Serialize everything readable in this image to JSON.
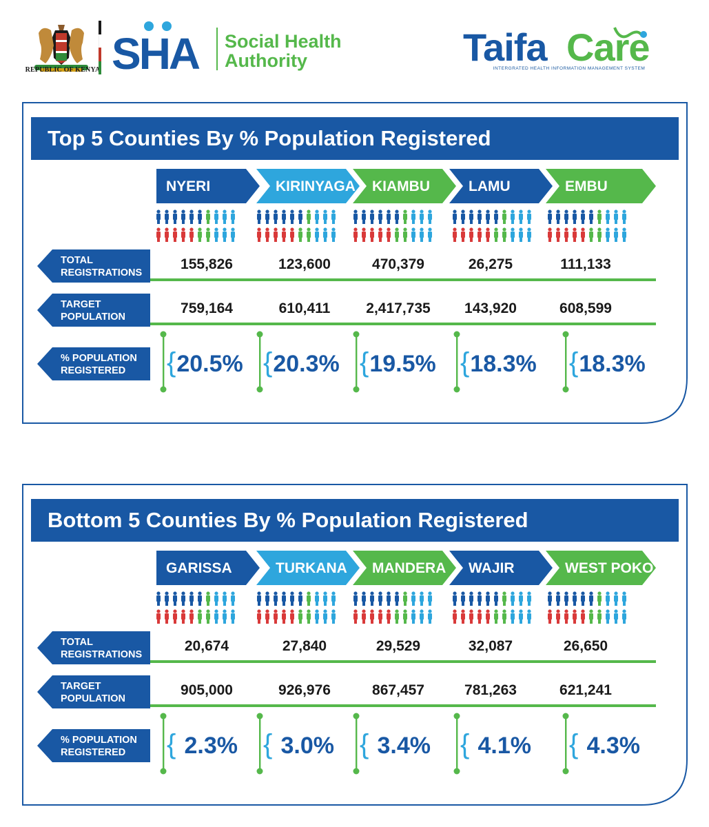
{
  "header": {
    "kenya_caption": "REPUBLIC OF KENYA",
    "sha_line1": "Social Health",
    "sha_line2": "Authority",
    "taifacare_subtitle": "INTERGRATED HEALTH INFORMATION MANAGEMENT SYSTEM",
    "brand_colors": {
      "blue": "#1958a4",
      "green": "#55b84b",
      "light_blue": "#2ea6dd",
      "red": "#d93a3a"
    }
  },
  "top": {
    "title": "Top 5 Counties By % Population Registered",
    "labels": {
      "total_l1": "TOTAL",
      "total_l2": "REGISTRATIONS",
      "target_l1": "TARGET",
      "target_l2": "POPULATION",
      "pct_l1": "% POPULATION",
      "pct_l2": "REGISTERED"
    },
    "counties": [
      {
        "name": "NYERI",
        "total": "155,826",
        "target": "759,164",
        "pct": "20.5%",
        "pct_value": 20.5
      },
      {
        "name": "KIRINYAGA",
        "total": "123,600",
        "target": "610,411",
        "pct": "20.3%",
        "pct_value": 20.3
      },
      {
        "name": "KIAMBU",
        "total": "470,379",
        "target": "2,417,735",
        "pct": "19.5%",
        "pct_value": 19.5
      },
      {
        "name": "LAMU",
        "total": "26,275",
        "target": "143,920",
        "pct": "18.3%",
        "pct_value": 18.3
      },
      {
        "name": "EMBU",
        "total": "111,133",
        "target": "608,599",
        "pct": "18.3%",
        "pct_value": 18.3
      }
    ]
  },
  "bottom": {
    "title": "Bottom  5 Counties By % Population Registered",
    "labels": {
      "total_l1": "TOTAL",
      "total_l2": "REGISTRATIONS",
      "target_l1": "TARGET",
      "target_l2": "POPULATION",
      "pct_l1": "% POPULATION",
      "pct_l2": "REGISTERED"
    },
    "counties": [
      {
        "name": "GARISSA",
        "total": "20,674",
        "target": "905,000",
        "pct": "2.3%",
        "pct_value": 2.3
      },
      {
        "name": "TURKANA",
        "total": "27,840",
        "target": "926,976",
        "pct": "3.0%",
        "pct_value": 3.0
      },
      {
        "name": "MANDERA",
        "total": "29,529",
        "target": "867,457",
        "pct": "3.4%",
        "pct_value": 3.4
      },
      {
        "name": "WAJIR",
        "total": "32,087",
        "target": "781,263",
        "pct": "4.1%",
        "pct_value": 4.1
      },
      {
        "name": "WEST POKOT",
        "total": "26,650",
        "target": "621,241",
        "pct": "4.3%",
        "pct_value": 4.3
      }
    ]
  }
}
